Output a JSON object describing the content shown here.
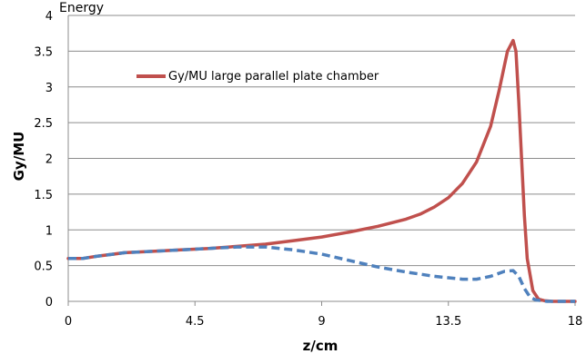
{
  "chart_data": {
    "type": "line",
    "title": "Energy",
    "xlabel": "z/cm",
    "ylabel": "Gy/MU",
    "xlim": [
      0,
      18
    ],
    "ylim": [
      0,
      4
    ],
    "x_ticks": [
      "0",
      "4.5",
      "9",
      "13.5",
      "18"
    ],
    "y_ticks": [
      "0",
      "0.5",
      "1",
      "1.5",
      "2",
      "2.5",
      "3",
      "3.5",
      "4"
    ],
    "grid": "horizontal",
    "legend_position": "top-left",
    "legend_label": "Gy/MU large parallel plate chamber",
    "series": [
      {
        "name": "Gy/MU large parallel plate chamber",
        "color": "#c0504d",
        "style": "solid",
        "x": [
          0,
          0.5,
          1,
          2,
          3,
          4,
          5,
          6,
          7,
          8,
          9,
          10,
          11,
          12,
          12.5,
          13,
          13.5,
          14,
          14.5,
          15,
          15.3,
          15.6,
          15.8,
          15.9,
          16.0,
          16.1,
          16.2,
          16.3,
          16.5,
          16.7,
          16.9,
          17.2,
          17.5,
          18
        ],
        "y": [
          0.6,
          0.6,
          0.63,
          0.68,
          0.7,
          0.72,
          0.74,
          0.77,
          0.8,
          0.85,
          0.9,
          0.97,
          1.05,
          1.15,
          1.22,
          1.32,
          1.45,
          1.65,
          1.95,
          2.45,
          2.95,
          3.5,
          3.65,
          3.5,
          2.8,
          2.0,
          1.2,
          0.6,
          0.15,
          0.03,
          0.01,
          0,
          0,
          0
        ]
      },
      {
        "name": "",
        "color": "#4f81bd",
        "style": "dashed",
        "x": [
          0,
          0.5,
          1,
          2,
          3,
          4,
          5,
          6,
          7,
          8,
          9,
          10,
          11,
          12,
          13,
          14,
          14.5,
          15,
          15.5,
          15.8,
          16.0,
          16.2,
          16.4,
          16.6,
          16.8,
          17,
          17.5,
          18
        ],
        "y": [
          0.6,
          0.6,
          0.63,
          0.68,
          0.7,
          0.72,
          0.74,
          0.76,
          0.76,
          0.72,
          0.66,
          0.57,
          0.48,
          0.41,
          0.35,
          0.31,
          0.31,
          0.35,
          0.42,
          0.43,
          0.35,
          0.18,
          0.06,
          0.02,
          0.01,
          0,
          0,
          0
        ]
      }
    ]
  }
}
